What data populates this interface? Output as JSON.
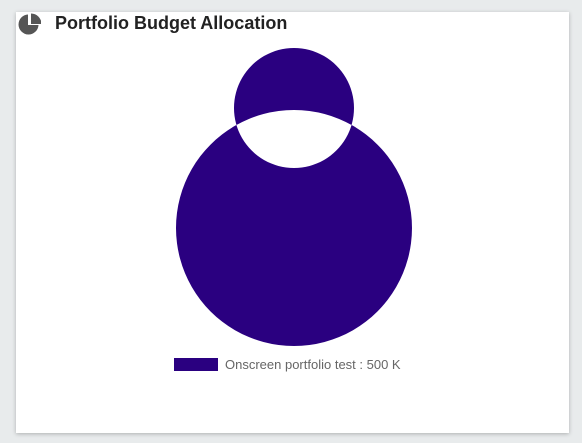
{
  "header": {
    "title": "Portfolio Budget Allocation",
    "icon": "pie-chart-icon"
  },
  "colors": {
    "accent": "#2a0080",
    "icon": "#555555"
  },
  "chart_data": {
    "type": "pie",
    "labels": [
      "Onscreen portfolio test"
    ],
    "values": [
      500
    ],
    "unit": "K",
    "legend_labels": [
      "Onscreen portfolio test : 500 K"
    ],
    "colors": [
      "#2a0080"
    ],
    "legend": "bottom"
  }
}
